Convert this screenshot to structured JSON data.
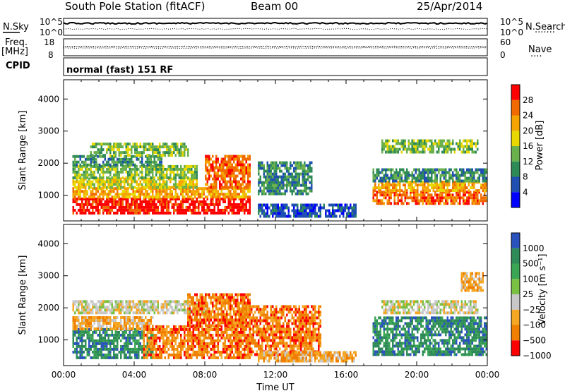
{
  "header": {
    "station": "South Pole Station (fitACF)",
    "beam": "Beam 00",
    "date": "25/Apr/2014"
  },
  "top_panel": {
    "nsky_label": "N.Sky",
    "nsearch_label": "N.Search",
    "nsearch_dots": "·······",
    "left_top": "10^5",
    "left_bottom": "10^0",
    "right_top": "10^5",
    "right_bottom": "10^0"
  },
  "freq_panel": {
    "freq_label": "Freq.",
    "freq_unit": "[MHz]",
    "freq_top": "18",
    "freq_bottom": "8",
    "nave_label": "Nave",
    "nave_dots": "····",
    "nave_top": "60",
    "nave_bottom": "0"
  },
  "cpid_panel": {
    "cpid_label": "CPID",
    "mode": "normal (fast) 151 RF"
  },
  "colors": {
    "power_scale": [
      "#0000ff",
      "#1f4fb0",
      "#2e8b57",
      "#6ab04c",
      "#e8d800",
      "#f5a400",
      "#f06a00",
      "#ff0000"
    ],
    "velocity_scale": [
      "#2a52be",
      "#2e8b57",
      "#3aa655",
      "#7ac043",
      "#c8c8c8",
      "#f5a623",
      "#f07f00",
      "#ff0000"
    ]
  },
  "chart_data": [
    {
      "type": "heatmap",
      "name": "power",
      "ylabel": "Slant Range [km]",
      "yticks": [
        "1000",
        "2000",
        "3000",
        "4000"
      ],
      "ylim": [
        200,
        4600
      ],
      "colorbar_label": "Power [dB]",
      "colorbar_ticks": [
        "4",
        "8",
        "12",
        "16",
        "20",
        "24",
        "28"
      ],
      "colorbar_range": [
        0,
        32
      ],
      "regions": [
        {
          "t0": 0.5,
          "t1": 10.5,
          "r0": 400,
          "r1": 900,
          "level": 7
        },
        {
          "t0": 0.5,
          "t1": 10.5,
          "r0": 900,
          "r1": 1200,
          "level": 5
        },
        {
          "t0": 0.5,
          "t1": 7.5,
          "r0": 1200,
          "r1": 1500,
          "level": 4
        },
        {
          "t0": 0.5,
          "t1": 7.5,
          "r0": 1500,
          "r1": 1900,
          "level": 3
        },
        {
          "t0": 0.5,
          "t1": 5.5,
          "r0": 1900,
          "r1": 2200,
          "level": 2
        },
        {
          "t0": 1.5,
          "t1": 7.0,
          "r0": 2200,
          "r1": 2600,
          "level": 3
        },
        {
          "t0": 8.0,
          "t1": 10.5,
          "r0": 1200,
          "r1": 2200,
          "level": 6
        },
        {
          "t0": 11.0,
          "t1": 14.0,
          "r0": 1000,
          "r1": 2000,
          "level": 2
        },
        {
          "t0": 11.0,
          "t1": 16.5,
          "r0": 300,
          "r1": 700,
          "level": 1
        },
        {
          "t0": 17.5,
          "t1": 24.0,
          "r0": 700,
          "r1": 1100,
          "level": 6
        },
        {
          "t0": 17.5,
          "t1": 24.0,
          "r0": 1100,
          "r1": 1400,
          "level": 5
        },
        {
          "t0": 17.5,
          "t1": 24.0,
          "r0": 1400,
          "r1": 1800,
          "level": 2
        },
        {
          "t0": 18.0,
          "t1": 23.5,
          "r0": 2300,
          "r1": 2700,
          "level": 3
        }
      ]
    },
    {
      "type": "heatmap",
      "name": "velocity",
      "ylabel": "Slant Range [km]",
      "yticks": [
        "1000",
        "2000",
        "3000",
        "4000"
      ],
      "ylim": [
        200,
        4600
      ],
      "xlabel": "Time UT",
      "xticks": [
        "00:00",
        "04:00",
        "08:00",
        "12:00",
        "16:00",
        "20:00",
        "00:00"
      ],
      "xlim": [
        0,
        24
      ],
      "colorbar_label": "Velocity [m s⁻¹]",
      "colorbar_ticks": [
        "1000",
        "500",
        "100",
        "25",
        "−25",
        "−100",
        "−500",
        "−1000"
      ],
      "regions": [
        {
          "t0": 0.5,
          "t1": 5.0,
          "r0": 400,
          "r1": 1300,
          "level": 1
        },
        {
          "t0": 0.5,
          "t1": 5.0,
          "r0": 1300,
          "r1": 1700,
          "level": 5
        },
        {
          "t0": 0.5,
          "t1": 8.0,
          "r0": 1800,
          "r1": 2200,
          "level": 4
        },
        {
          "t0": 4.5,
          "t1": 10.5,
          "r0": 400,
          "r1": 1400,
          "level": 6
        },
        {
          "t0": 7.0,
          "t1": 10.5,
          "r0": 1400,
          "r1": 2400,
          "level": 6
        },
        {
          "t0": 10.5,
          "t1": 14.5,
          "r0": 500,
          "r1": 2000,
          "level": 6
        },
        {
          "t0": 11.0,
          "t1": 16.5,
          "r0": 300,
          "r1": 600,
          "level": 5
        },
        {
          "t0": 17.5,
          "t1": 24.0,
          "r0": 500,
          "r1": 1700,
          "level": 1
        },
        {
          "t0": 18.0,
          "t1": 23.5,
          "r0": 1800,
          "r1": 2200,
          "level": 4
        },
        {
          "t0": 22.5,
          "t1": 23.8,
          "r0": 2500,
          "r1": 3100,
          "level": 5
        }
      ]
    }
  ]
}
